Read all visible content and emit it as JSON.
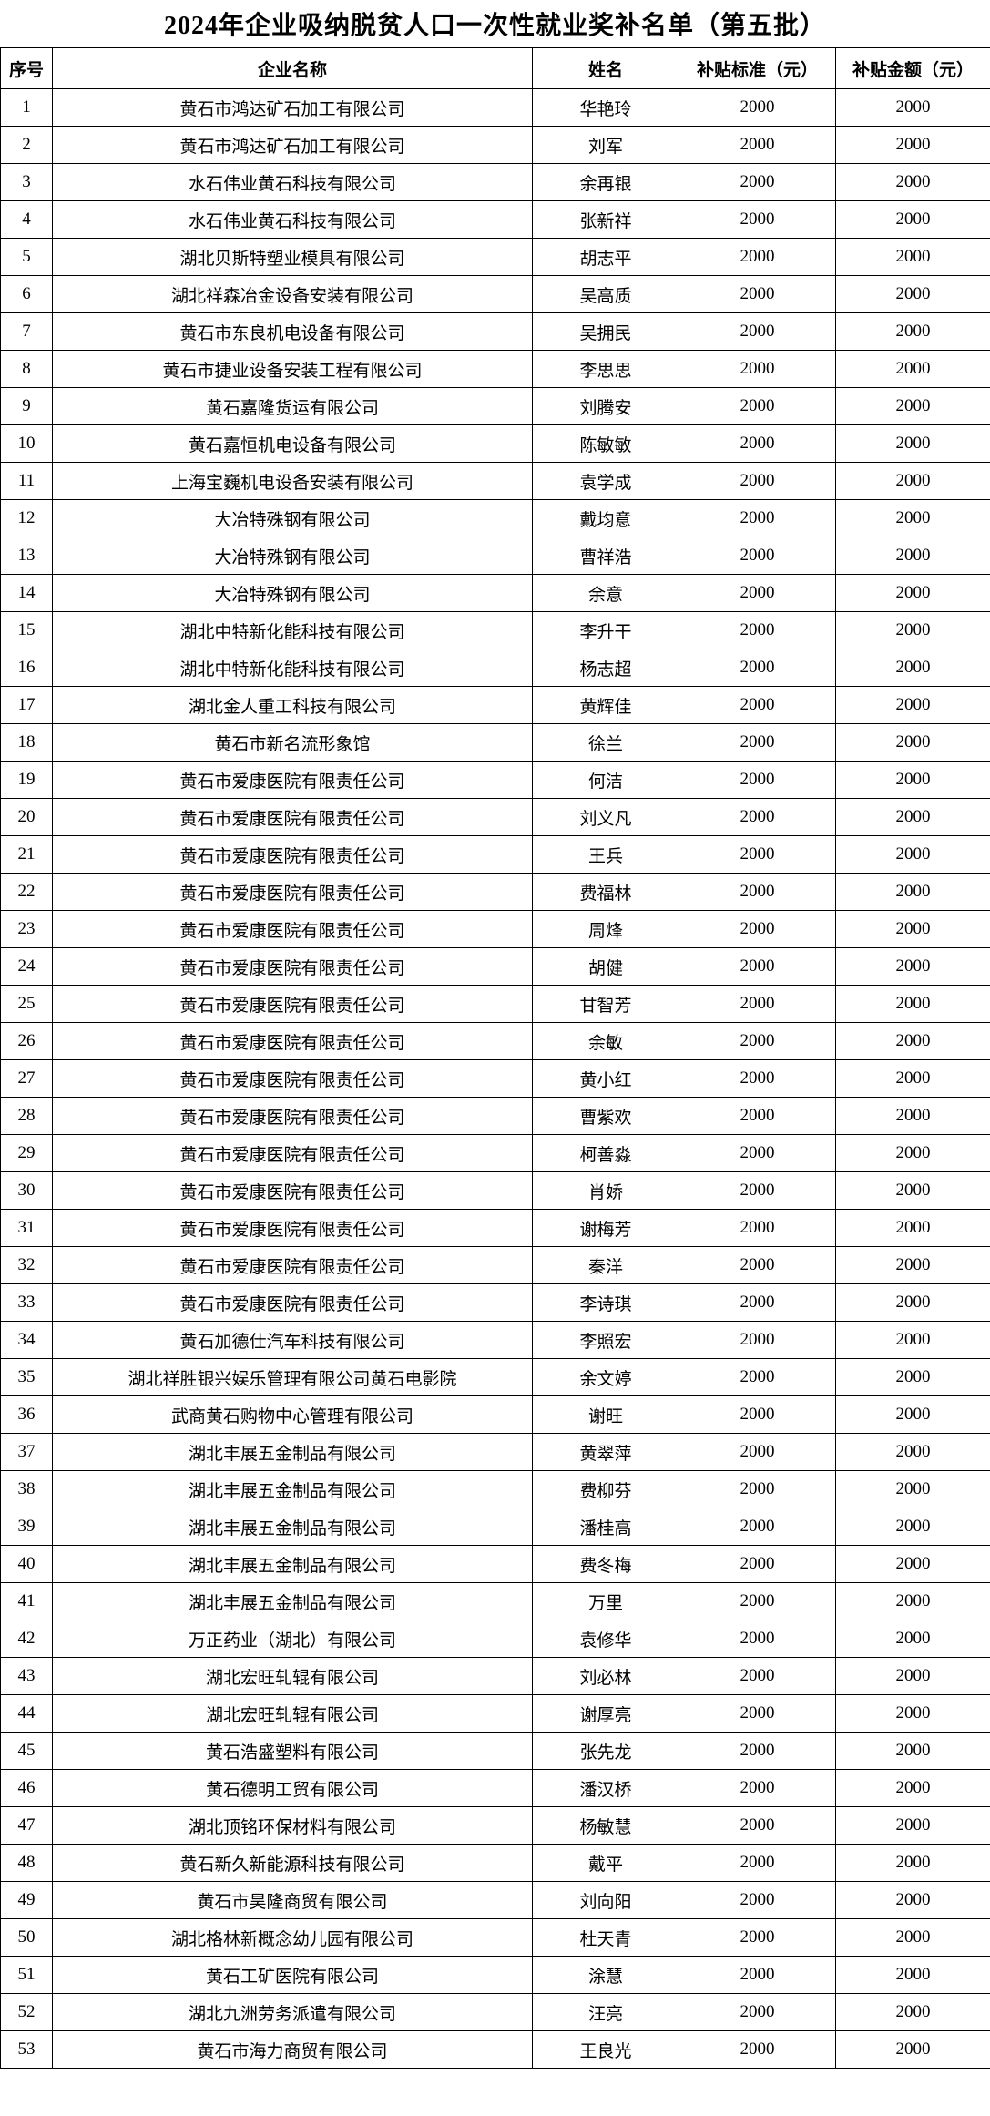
{
  "page": {
    "title": "2024年企业吸纳脱贫人口一次性就业奖补名单（第五批）"
  },
  "table": {
    "columns": [
      "序号",
      "企业名称",
      "姓名",
      "补贴标准（元）",
      "补贴金额（元）"
    ],
    "rows": [
      [
        "1",
        "黄石市鸿达矿石加工有限公司",
        "华艳玲",
        "2000",
        "2000"
      ],
      [
        "2",
        "黄石市鸿达矿石加工有限公司",
        "刘军",
        "2000",
        "2000"
      ],
      [
        "3",
        "水石伟业黄石科技有限公司",
        "余再银",
        "2000",
        "2000"
      ],
      [
        "4",
        "水石伟业黄石科技有限公司",
        "张新祥",
        "2000",
        "2000"
      ],
      [
        "5",
        "湖北贝斯特塑业模具有限公司",
        "胡志平",
        "2000",
        "2000"
      ],
      [
        "6",
        "湖北祥森冶金设备安装有限公司",
        "吴高质",
        "2000",
        "2000"
      ],
      [
        "7",
        "黄石市东良机电设备有限公司",
        "吴拥民",
        "2000",
        "2000"
      ],
      [
        "8",
        "黄石市捷业设备安装工程有限公司",
        "李思思",
        "2000",
        "2000"
      ],
      [
        "9",
        "黄石嘉隆货运有限公司",
        "刘腾安",
        "2000",
        "2000"
      ],
      [
        "10",
        "黄石嘉恒机电设备有限公司",
        "陈敏敏",
        "2000",
        "2000"
      ],
      [
        "11",
        "上海宝巍机电设备安装有限公司",
        "袁学成",
        "2000",
        "2000"
      ],
      [
        "12",
        "大冶特殊钢有限公司",
        "戴均意",
        "2000",
        "2000"
      ],
      [
        "13",
        "大冶特殊钢有限公司",
        "曹祥浩",
        "2000",
        "2000"
      ],
      [
        "14",
        "大冶特殊钢有限公司",
        "余意",
        "2000",
        "2000"
      ],
      [
        "15",
        "湖北中特新化能科技有限公司",
        "李升干",
        "2000",
        "2000"
      ],
      [
        "16",
        "湖北中特新化能科技有限公司",
        "杨志超",
        "2000",
        "2000"
      ],
      [
        "17",
        "湖北金人重工科技有限公司",
        "黄辉佳",
        "2000",
        "2000"
      ],
      [
        "18",
        "黄石市新名流形象馆",
        "徐兰",
        "2000",
        "2000"
      ],
      [
        "19",
        "黄石市爱康医院有限责任公司",
        "何洁",
        "2000",
        "2000"
      ],
      [
        "20",
        "黄石市爱康医院有限责任公司",
        "刘义凡",
        "2000",
        "2000"
      ],
      [
        "21",
        "黄石市爱康医院有限责任公司",
        "王兵",
        "2000",
        "2000"
      ],
      [
        "22",
        "黄石市爱康医院有限责任公司",
        "费福林",
        "2000",
        "2000"
      ],
      [
        "23",
        "黄石市爱康医院有限责任公司",
        "周烽",
        "2000",
        "2000"
      ],
      [
        "24",
        "黄石市爱康医院有限责任公司",
        "胡健",
        "2000",
        "2000"
      ],
      [
        "25",
        "黄石市爱康医院有限责任公司",
        "甘智芳",
        "2000",
        "2000"
      ],
      [
        "26",
        "黄石市爱康医院有限责任公司",
        "余敏",
        "2000",
        "2000"
      ],
      [
        "27",
        "黄石市爱康医院有限责任公司",
        "黄小红",
        "2000",
        "2000"
      ],
      [
        "28",
        "黄石市爱康医院有限责任公司",
        "曹紫欢",
        "2000",
        "2000"
      ],
      [
        "29",
        "黄石市爱康医院有限责任公司",
        "柯善淼",
        "2000",
        "2000"
      ],
      [
        "30",
        "黄石市爱康医院有限责任公司",
        "肖娇",
        "2000",
        "2000"
      ],
      [
        "31",
        "黄石市爱康医院有限责任公司",
        "谢梅芳",
        "2000",
        "2000"
      ],
      [
        "32",
        "黄石市爱康医院有限责任公司",
        "秦洋",
        "2000",
        "2000"
      ],
      [
        "33",
        "黄石市爱康医院有限责任公司",
        "李诗琪",
        "2000",
        "2000"
      ],
      [
        "34",
        "黄石加德仕汽车科技有限公司",
        "李照宏",
        "2000",
        "2000"
      ],
      [
        "35",
        "湖北祥胜银兴娱乐管理有限公司黄石电影院",
        "余文婷",
        "2000",
        "2000"
      ],
      [
        "36",
        "武商黄石购物中心管理有限公司",
        "谢旺",
        "2000",
        "2000"
      ],
      [
        "37",
        "湖北丰展五金制品有限公司",
        "黄翠萍",
        "2000",
        "2000"
      ],
      [
        "38",
        "湖北丰展五金制品有限公司",
        "费柳芬",
        "2000",
        "2000"
      ],
      [
        "39",
        "湖北丰展五金制品有限公司",
        "潘桂高",
        "2000",
        "2000"
      ],
      [
        "40",
        "湖北丰展五金制品有限公司",
        "费冬梅",
        "2000",
        "2000"
      ],
      [
        "41",
        "湖北丰展五金制品有限公司",
        "万里",
        "2000",
        "2000"
      ],
      [
        "42",
        "万正药业（湖北）有限公司",
        "袁修华",
        "2000",
        "2000"
      ],
      [
        "43",
        "湖北宏旺轧辊有限公司",
        "刘必林",
        "2000",
        "2000"
      ],
      [
        "44",
        "湖北宏旺轧辊有限公司",
        "谢厚亮",
        "2000",
        "2000"
      ],
      [
        "45",
        "黄石浩盛塑料有限公司",
        "张先龙",
        "2000",
        "2000"
      ],
      [
        "46",
        "黄石德明工贸有限公司",
        "潘汉桥",
        "2000",
        "2000"
      ],
      [
        "47",
        "湖北顶铭环保材料有限公司",
        "杨敏慧",
        "2000",
        "2000"
      ],
      [
        "48",
        "黄石新久新能源科技有限公司",
        "戴平",
        "2000",
        "2000"
      ],
      [
        "49",
        "黄石市昊隆商贸有限公司",
        "刘向阳",
        "2000",
        "2000"
      ],
      [
        "50",
        "湖北格林新概念幼儿园有限公司",
        "杜天青",
        "2000",
        "2000"
      ],
      [
        "51",
        "黄石工矿医院有限公司",
        "涂慧",
        "2000",
        "2000"
      ],
      [
        "52",
        "湖北九洲劳务派遣有限公司",
        "汪亮",
        "2000",
        "2000"
      ],
      [
        "53",
        "黄石市海力商贸有限公司",
        "王良光",
        "2000",
        "2000"
      ]
    ]
  }
}
